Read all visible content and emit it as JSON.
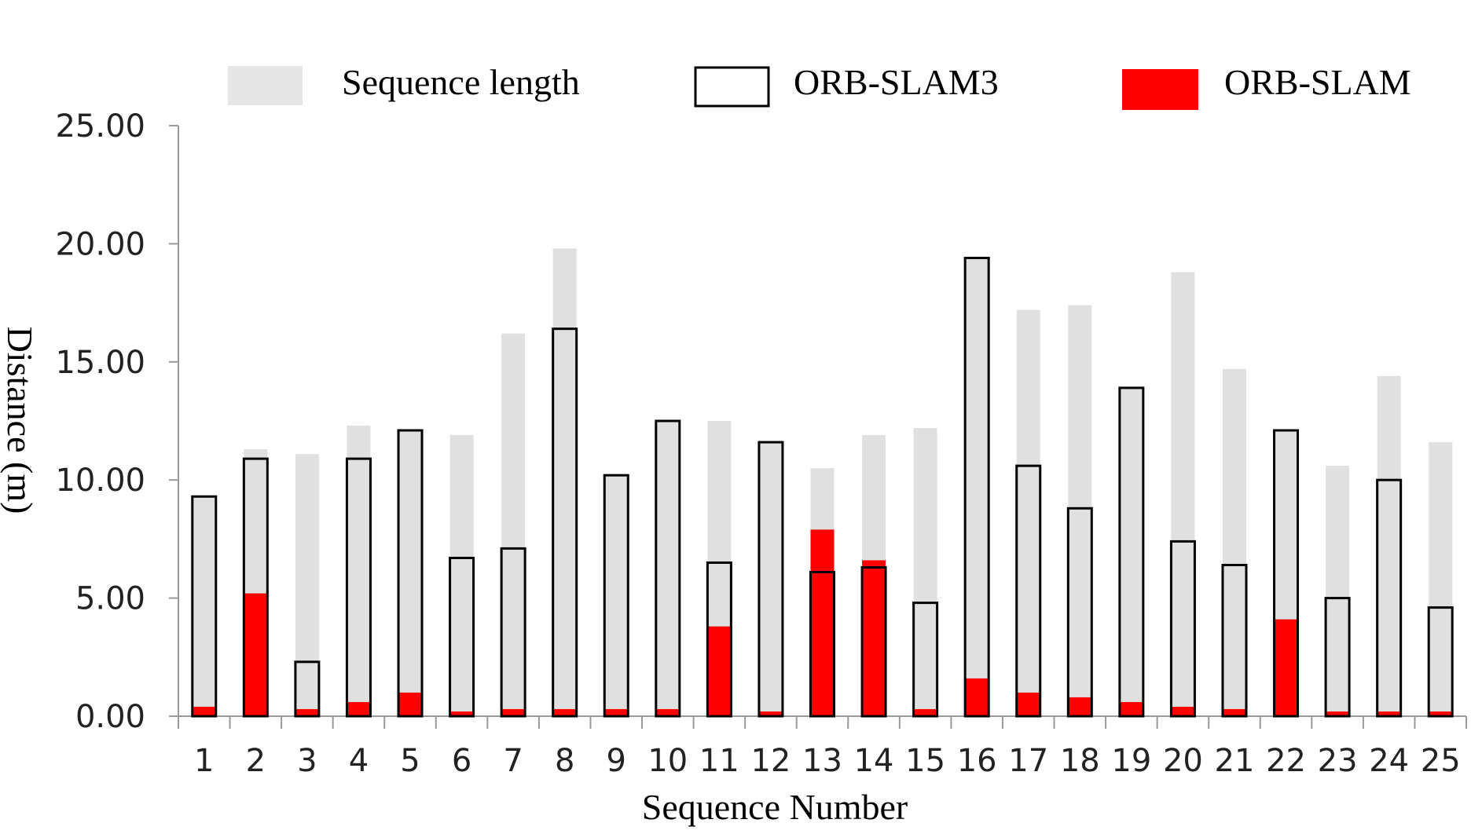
{
  "chart_data": {
    "type": "bar",
    "xlabel": "Sequence Number",
    "ylabel": "Distance (m)",
    "ylim": [
      0,
      25
    ],
    "yticks": [
      "0.00",
      "5.00",
      "10.00",
      "15.00",
      "20.00",
      "25.00"
    ],
    "grid": false,
    "legend_position": "top",
    "categories": [
      "1",
      "2",
      "3",
      "4",
      "5",
      "6",
      "7",
      "8",
      "9",
      "10",
      "11",
      "12",
      "13",
      "14",
      "15",
      "16",
      "17",
      "18",
      "19",
      "20",
      "21",
      "22",
      "23",
      "24",
      "25"
    ],
    "series": [
      {
        "name": "Sequence length",
        "color": "#e0e0e0",
        "values": [
          9.3,
          11.3,
          11.1,
          12.3,
          12.1,
          11.9,
          16.2,
          19.8,
          10.2,
          12.5,
          12.5,
          11.6,
          10.5,
          11.9,
          12.2,
          19.4,
          17.2,
          17.4,
          13.9,
          18.8,
          14.7,
          12.1,
          10.6,
          14.4,
          11.6
        ]
      },
      {
        "name": "ORB-SLAM3",
        "color": "#000000",
        "values": [
          9.3,
          10.9,
          2.3,
          10.9,
          12.1,
          6.7,
          7.1,
          16.4,
          10.2,
          12.5,
          6.5,
          11.6,
          6.1,
          6.3,
          4.8,
          19.4,
          10.6,
          8.8,
          13.9,
          7.4,
          6.4,
          12.1,
          5.0,
          10.0,
          4.6
        ]
      },
      {
        "name": "ORB-SLAM",
        "color": "#ff0000",
        "values": [
          0.4,
          5.2,
          0.3,
          0.6,
          1.0,
          0.2,
          0.3,
          0.3,
          0.3,
          0.3,
          3.8,
          0.2,
          7.9,
          6.6,
          0.3,
          1.6,
          1.0,
          0.8,
          0.6,
          0.4,
          0.3,
          4.1,
          0.2,
          0.2,
          0.2
        ]
      }
    ]
  }
}
